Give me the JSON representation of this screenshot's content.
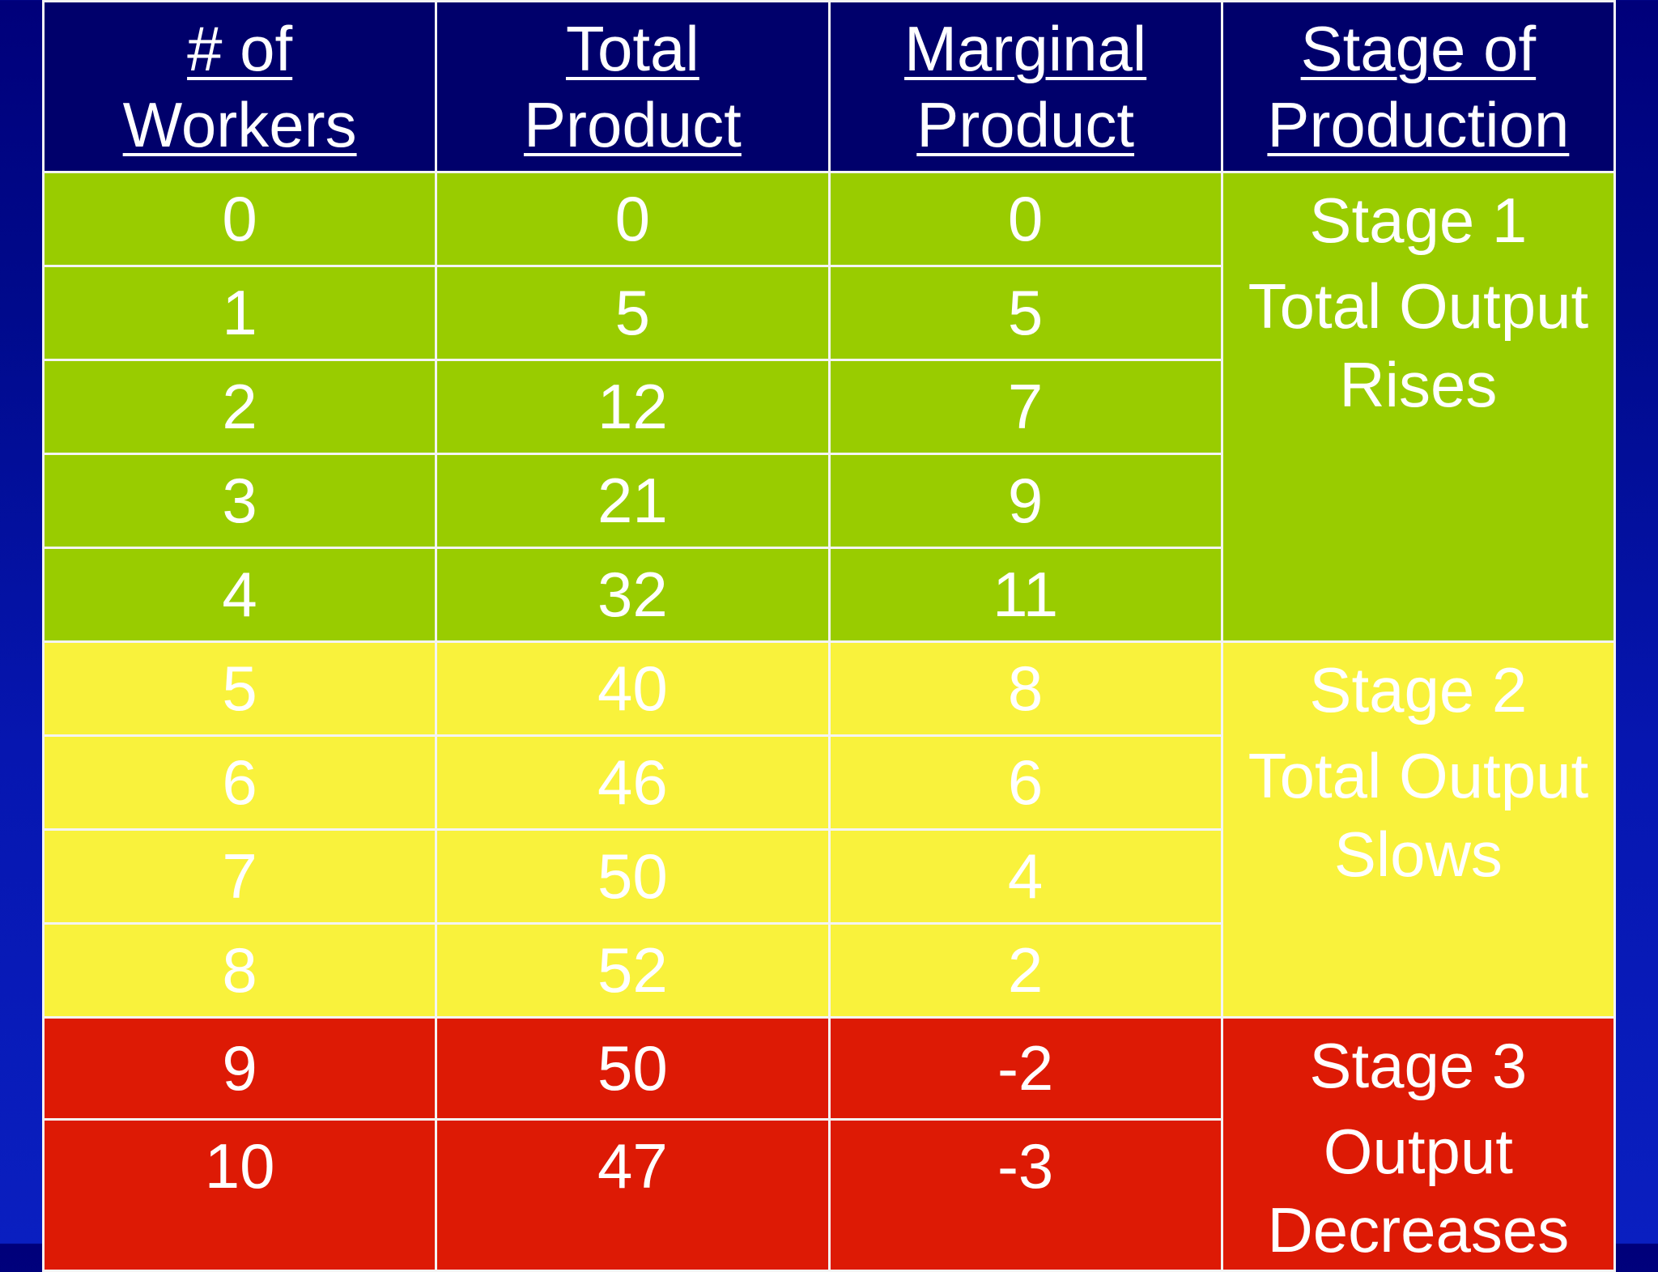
{
  "table": {
    "header": [
      [
        "# of",
        "Workers"
      ],
      [
        "Total",
        "Product"
      ],
      [
        "Marginal",
        "Product"
      ],
      [
        "Stage of",
        "Production"
      ]
    ],
    "groups": [
      {
        "color": "#99cc00",
        "stage": "Stage 1",
        "text": [
          "Total Output",
          "Rises"
        ],
        "rows": [
          [
            0,
            0,
            0
          ],
          [
            1,
            5,
            5
          ],
          [
            2,
            12,
            7
          ],
          [
            3,
            21,
            9
          ],
          [
            4,
            32,
            11
          ]
        ]
      },
      {
        "color": "#f9f23c",
        "stage": "Stage 2",
        "text": [
          "Total Output",
          "Slows"
        ],
        "rows": [
          [
            5,
            40,
            8
          ],
          [
            6,
            46,
            6
          ],
          [
            7,
            50,
            4
          ],
          [
            8,
            52,
            2
          ]
        ]
      },
      {
        "color": "#dd1a05",
        "stage": "Stage 3",
        "text": [
          "Output",
          "Decreases"
        ],
        "rows": [
          [
            9,
            50,
            -2
          ],
          [
            10,
            47,
            -3
          ]
        ]
      }
    ]
  }
}
